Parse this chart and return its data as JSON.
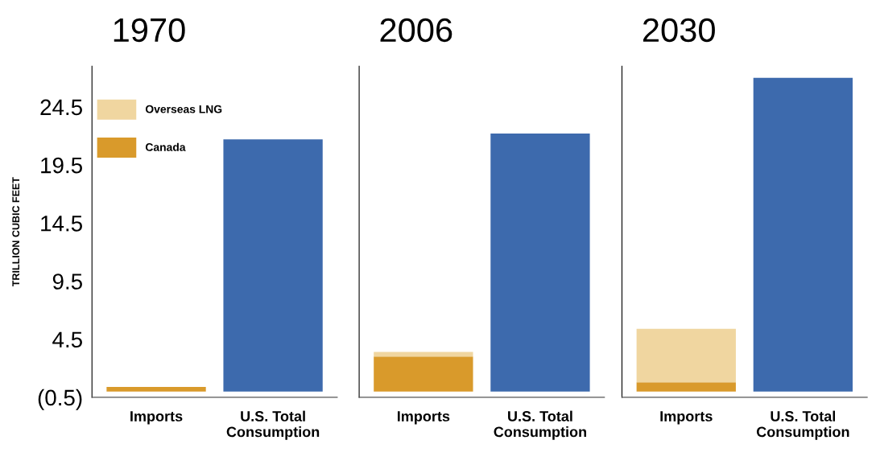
{
  "chart_data": [
    {
      "type": "bar",
      "title": "1970",
      "ylabel": "TRILLION CUBIC FEET",
      "categories": [
        "Imports",
        "U.S. Total\nConsumption"
      ],
      "stacked": true,
      "series": [
        {
          "name": "Canada",
          "color": "#d99a2b",
          "values": [
            0.4,
            null
          ]
        },
        {
          "name": "Overseas LNG",
          "color": "#f0d6a0",
          "values": [
            0,
            null
          ]
        },
        {
          "color": "#3d6aad",
          "values": [
            null,
            21.7
          ]
        }
      ],
      "ylim": [
        -0.5,
        28
      ],
      "yticks": [
        {
          "value": -0.5,
          "label": "(0.5)"
        },
        4.5,
        9.5,
        14.5,
        19.5,
        24.5
      ],
      "legend": "top left",
      "grid": false
    },
    {
      "type": "bar",
      "title": "2006",
      "categories": [
        "Imports",
        "U.S. Total\nConsumption"
      ],
      "stacked": true,
      "series": [
        {
          "color": "#d99a2b",
          "values": [
            3.0,
            null
          ]
        },
        {
          "color": "#f0d6a0",
          "values": [
            0.4,
            null
          ]
        },
        {
          "color": "#3d6aad",
          "values": [
            null,
            22.2
          ]
        }
      ],
      "ylim": [
        -0.5,
        28
      ],
      "tick_labels": "x",
      "grid": false
    },
    {
      "type": "bar",
      "title": "2030",
      "categories": [
        "Imports",
        "U.S. Total\nConsumption"
      ],
      "stacked": true,
      "series": [
        {
          "color": "#d99a2b",
          "values": [
            0.8,
            null
          ]
        },
        {
          "color": "#f0d6a0",
          "values": [
            4.6,
            null
          ]
        },
        {
          "color": "#3d6aad",
          "values": [
            null,
            27.0
          ]
        }
      ],
      "ylim": [
        -0.5,
        28
      ],
      "tick_labels": "x",
      "grid": false
    }
  ]
}
